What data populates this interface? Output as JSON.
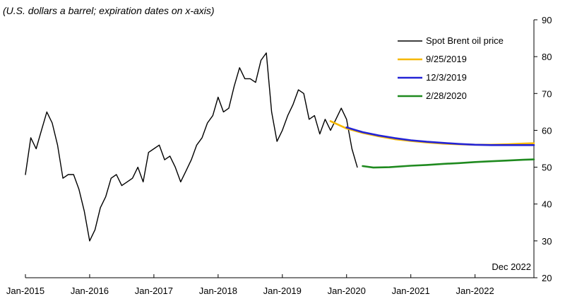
{
  "chart_data": {
    "type": "line",
    "subtitle": "(U.S. dollars a barrel; expiration dates on x-axis)",
    "annotation": "Dec 2022",
    "xlabel": "",
    "ylabel": "",
    "x_tick_labels": [
      "Jan-2015",
      "Jan-2016",
      "Jan-2017",
      "Jan-2018",
      "Jan-2019",
      "Jan-2020",
      "Jan-2021",
      "Jan-2022"
    ],
    "x_tick_dates": [
      "2015-01",
      "2016-01",
      "2017-01",
      "2018-01",
      "2019-01",
      "2020-01",
      "2021-01",
      "2022-01"
    ],
    "xlim": [
      "2015-01",
      "2022-12"
    ],
    "ylim": [
      20,
      90
    ],
    "y_ticks": [
      20,
      30,
      40,
      50,
      60,
      70,
      80,
      90
    ],
    "y_axis_side": "right",
    "grid": false,
    "legend_position": "top-right",
    "series": [
      {
        "name": "Spot Brent oil price",
        "color": "#000000",
        "points": [
          [
            "2015-01",
            48
          ],
          [
            "2015-02",
            58
          ],
          [
            "2015-03",
            55
          ],
          [
            "2015-04",
            60
          ],
          [
            "2015-05",
            65
          ],
          [
            "2015-06",
            62
          ],
          [
            "2015-07",
            56
          ],
          [
            "2015-08",
            47
          ],
          [
            "2015-09",
            48
          ],
          [
            "2015-10",
            48
          ],
          [
            "2015-11",
            44
          ],
          [
            "2015-12",
            38
          ],
          [
            "2016-01",
            30
          ],
          [
            "2016-02",
            33
          ],
          [
            "2016-03",
            39
          ],
          [
            "2016-04",
            42
          ],
          [
            "2016-05",
            47
          ],
          [
            "2016-06",
            48
          ],
          [
            "2016-07",
            45
          ],
          [
            "2016-08",
            46
          ],
          [
            "2016-09",
            47
          ],
          [
            "2016-10",
            50
          ],
          [
            "2016-11",
            46
          ],
          [
            "2016-12",
            54
          ],
          [
            "2017-01",
            55
          ],
          [
            "2017-02",
            56
          ],
          [
            "2017-03",
            52
          ],
          [
            "2017-04",
            53
          ],
          [
            "2017-05",
            50
          ],
          [
            "2017-06",
            46
          ],
          [
            "2017-07",
            49
          ],
          [
            "2017-08",
            52
          ],
          [
            "2017-09",
            56
          ],
          [
            "2017-10",
            58
          ],
          [
            "2017-11",
            62
          ],
          [
            "2017-12",
            64
          ],
          [
            "2018-01",
            69
          ],
          [
            "2018-02",
            65
          ],
          [
            "2018-03",
            66
          ],
          [
            "2018-04",
            72
          ],
          [
            "2018-05",
            77
          ],
          [
            "2018-06",
            74
          ],
          [
            "2018-07",
            74
          ],
          [
            "2018-08",
            73
          ],
          [
            "2018-09",
            79
          ],
          [
            "2018-10",
            81
          ],
          [
            "2018-11",
            65
          ],
          [
            "2018-12",
            57
          ],
          [
            "2019-01",
            60
          ],
          [
            "2019-02",
            64
          ],
          [
            "2019-03",
            67
          ],
          [
            "2019-04",
            71
          ],
          [
            "2019-05",
            70
          ],
          [
            "2019-06",
            63
          ],
          [
            "2019-07",
            64
          ],
          [
            "2019-08",
            59
          ],
          [
            "2019-09",
            63
          ],
          [
            "2019-10",
            60
          ],
          [
            "2019-11",
            63
          ],
          [
            "2019-12",
            66
          ],
          [
            "2020-01",
            63
          ],
          [
            "2020-02",
            55
          ],
          [
            "2020-03",
            50
          ]
        ]
      },
      {
        "name": "9/25/2019",
        "color": "#f5b800",
        "points": [
          [
            "2019-10",
            62.5
          ],
          [
            "2020-01",
            60.5
          ],
          [
            "2020-04",
            59.3
          ],
          [
            "2020-07",
            58.4
          ],
          [
            "2020-10",
            57.6
          ],
          [
            "2021-01",
            57.1
          ],
          [
            "2021-04",
            56.7
          ],
          [
            "2021-07",
            56.4
          ],
          [
            "2021-10",
            56.2
          ],
          [
            "2022-01",
            56.1
          ],
          [
            "2022-04",
            56.1
          ],
          [
            "2022-07",
            56.2
          ],
          [
            "2022-10",
            56.4
          ],
          [
            "2022-12",
            56.5
          ]
        ]
      },
      {
        "name": "12/3/2019",
        "color": "#2323d6",
        "points": [
          [
            "2020-01",
            60.8
          ],
          [
            "2020-04",
            59.5
          ],
          [
            "2020-07",
            58.6
          ],
          [
            "2020-10",
            57.9
          ],
          [
            "2021-01",
            57.3
          ],
          [
            "2021-04",
            56.9
          ],
          [
            "2021-07",
            56.6
          ],
          [
            "2021-10",
            56.3
          ],
          [
            "2022-01",
            56.1
          ],
          [
            "2022-04",
            56.0
          ],
          [
            "2022-07",
            56.0
          ],
          [
            "2022-10",
            56.0
          ],
          [
            "2022-12",
            56.0
          ]
        ]
      },
      {
        "name": "2/28/2020",
        "color": "#1f8a1f",
        "points": [
          [
            "2020-04",
            50.3
          ],
          [
            "2020-06",
            49.9
          ],
          [
            "2020-09",
            50.0
          ],
          [
            "2021-01",
            50.4
          ],
          [
            "2021-04",
            50.6
          ],
          [
            "2021-07",
            50.9
          ],
          [
            "2021-10",
            51.1
          ],
          [
            "2022-01",
            51.4
          ],
          [
            "2022-04",
            51.6
          ],
          [
            "2022-07",
            51.8
          ],
          [
            "2022-10",
            52.0
          ],
          [
            "2022-12",
            52.1
          ]
        ]
      }
    ]
  }
}
